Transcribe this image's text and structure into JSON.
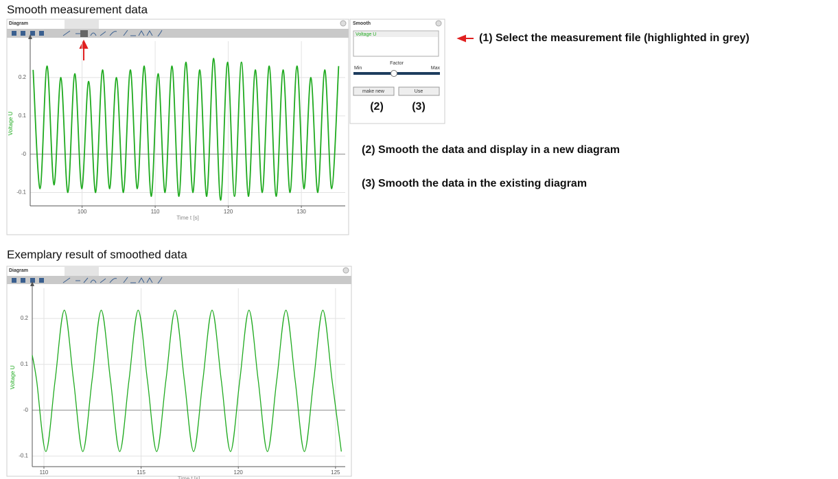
{
  "headings": [
    "Smooth measurement data",
    "Exemplary result of smoothed data"
  ],
  "windows": [
    {
      "title": "Diagram"
    },
    {
      "title": "Diagram"
    }
  ],
  "smooth_panel": {
    "title": "Smooth",
    "list_item": "Voltage U",
    "slider_label": "Factor",
    "min_label": "Min",
    "max_label": "Max",
    "buttons": [
      "make new",
      "Use"
    ],
    "button_markers": [
      "(2)",
      "(3)"
    ]
  },
  "annotations": [
    "(1) Select the measurement file (highlighted in grey)",
    "(2) Smooth the data and display in a new diagram",
    "(3) Smooth the data in the existing diagram"
  ],
  "chart_data": [
    {
      "type": "line",
      "xlabel": "Time t [s]",
      "ylabel": "Voltage U",
      "color": "#1faa1f",
      "grid": true,
      "xlim": [
        92.9,
        136
      ],
      "ylim": [
        -0.135,
        0.295
      ],
      "xticks": [
        100,
        110,
        120,
        130
      ],
      "yticks": [
        0.2,
        0.1,
        {
          "value": 0,
          "label": "-0"
        },
        -0.1
      ],
      "x": [
        93.3,
        94.25,
        95.2,
        96.15,
        97.1,
        98.05,
        99,
        99.95,
        100.9,
        101.85,
        102.8,
        103.75,
        104.7,
        105.65,
        106.6,
        107.55,
        108.5,
        109.45,
        110.4,
        111.35,
        112.3,
        113.25,
        114.2,
        115.15,
        116.1,
        117.05,
        118,
        118.95,
        119.9,
        120.85,
        121.8,
        122.75,
        123.7,
        124.65,
        125.6,
        126.55,
        127.5,
        128.45,
        129.4,
        130.35,
        131.3,
        132.25,
        133.2,
        134.15,
        135.1
      ],
      "values": [
        0.22,
        -0.09,
        0.23,
        -0.08,
        0.2,
        -0.1,
        0.21,
        -0.09,
        0.19,
        -0.1,
        0.22,
        -0.09,
        0.2,
        -0.1,
        0.22,
        -0.09,
        0.23,
        -0.11,
        0.21,
        -0.1,
        0.23,
        -0.11,
        0.24,
        -0.1,
        0.22,
        -0.11,
        0.25,
        -0.12,
        0.24,
        -0.11,
        0.24,
        -0.11,
        0.22,
        -0.1,
        0.23,
        -0.11,
        0.22,
        -0.1,
        0.23,
        -0.09,
        0.2,
        -0.1,
        0.22,
        -0.09,
        0.23
      ]
    },
    {
      "type": "line",
      "xlabel": "Time t [s]",
      "ylabel": "Voltage U",
      "color": "#1faa1f",
      "grid": true,
      "xlim": [
        109.4,
        125.5
      ],
      "ylim": [
        -0.123,
        0.266
      ],
      "xticks": [
        110,
        115,
        120,
        125
      ],
      "yticks": [
        0.2,
        0.1,
        {
          "value": 0,
          "label": "-0"
        },
        -0.1
      ],
      "x": [
        109.4,
        109.625,
        110.1,
        110.575,
        111.05,
        111.525,
        112,
        112.475,
        112.95,
        113.425,
        113.9,
        114.375,
        114.85,
        115.325,
        115.8,
        116.275,
        116.75,
        117.225,
        117.7,
        118.175,
        118.65,
        119.125,
        119.6,
        120.075,
        120.55,
        121.025,
        121.5,
        121.975,
        122.45,
        122.925,
        123.4,
        123.875,
        124.35,
        124.825,
        125.3
      ],
      "values": [
        0.12,
        0.065,
        -0.09,
        0.065,
        0.218,
        0.065,
        -0.09,
        0.065,
        0.218,
        0.065,
        -0.09,
        0.065,
        0.218,
        0.065,
        -0.09,
        0.065,
        0.218,
        0.065,
        -0.09,
        0.065,
        0.218,
        0.065,
        -0.09,
        0.065,
        0.218,
        0.065,
        -0.09,
        0.065,
        0.218,
        0.065,
        -0.09,
        0.065,
        0.218,
        0.065,
        -0.09
      ]
    }
  ]
}
